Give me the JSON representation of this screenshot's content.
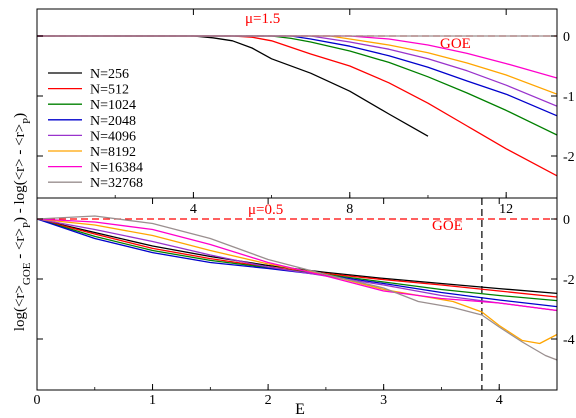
{
  "figure": {
    "ylabel_pre": "log(<r>",
    "ylabel_sub1": "GOE",
    "ylabel_mid": " - <r>",
    "ylabel_sub2": "P",
    "ylabel_post": ") - log(<r> - <r>",
    "ylabel_sub3": "P",
    "ylabel_end": ")",
    "xlabel": "E"
  },
  "chart_data": [
    {
      "type": "line",
      "panel": "top",
      "annotation": "μ=1.5",
      "annotation_color": "#ff0000",
      "reference_label": "GOE",
      "reference_y": 0,
      "reference_color": "#ff0000",
      "xlim": [
        0,
        13.3
      ],
      "ylim": [
        -2.7,
        0.45
      ],
      "x_ticks": [
        4,
        8,
        12
      ],
      "x_tick_labels": [
        "4",
        "8",
        "12"
      ],
      "x_tick_position": "top of bottom frame",
      "y_ticks": [
        0,
        -1,
        -2
      ],
      "y_tick_labels": [
        "0",
        "-1",
        "-2"
      ],
      "y_axis_side": "right",
      "legend_position": "left, below the reference line",
      "series": [
        {
          "name": "N=256",
          "color": "#000000",
          "x": [
            0,
            3,
            4,
            4.5,
            5,
            5.5,
            6,
            7,
            8,
            9,
            10
          ],
          "y": [
            0,
            0,
            0,
            -0.03,
            -0.08,
            -0.2,
            -0.38,
            -0.62,
            -0.92,
            -1.3,
            -1.67
          ]
        },
        {
          "name": "N=512",
          "color": "#ff0000",
          "x": [
            0,
            4,
            5,
            5.5,
            6,
            7,
            8,
            9,
            10,
            11,
            12,
            13.3
          ],
          "y": [
            0,
            0,
            0,
            -0.02,
            -0.08,
            -0.3,
            -0.5,
            -0.78,
            -1.12,
            -1.5,
            -1.88,
            -2.33
          ]
        },
        {
          "name": "N=1024",
          "color": "#008000",
          "x": [
            0,
            5,
            6,
            6.5,
            7,
            8,
            9,
            10,
            11,
            12,
            13.3
          ],
          "y": [
            0,
            0,
            0,
            -0.04,
            -0.1,
            -0.25,
            -0.44,
            -0.68,
            -0.95,
            -1.24,
            -1.65
          ]
        },
        {
          "name": "N=2048",
          "color": "#0000cc",
          "x": [
            0,
            5.5,
            6.5,
            7,
            8,
            9,
            10,
            11,
            12,
            13.3
          ],
          "y": [
            0,
            0,
            0,
            -0.05,
            -0.17,
            -0.33,
            -0.52,
            -0.75,
            -0.97,
            -1.33
          ]
        },
        {
          "name": "N=4096",
          "color": "#9933cc",
          "x": [
            0,
            6,
            7,
            8,
            9,
            10,
            11,
            12,
            13.3
          ],
          "y": [
            0,
            0,
            0,
            -0.1,
            -0.22,
            -0.38,
            -0.58,
            -0.82,
            -1.17
          ]
        },
        {
          "name": "N=8192",
          "color": "#ffa500",
          "x": [
            0,
            6.5,
            7.5,
            8,
            9,
            10,
            11,
            12,
            13.3
          ],
          "y": [
            0,
            0,
            0,
            -0.05,
            -0.15,
            -0.28,
            -0.45,
            -0.65,
            -0.97
          ]
        },
        {
          "name": "N=16384",
          "color": "#ff00cc",
          "x": [
            0,
            7,
            8,
            9,
            10,
            11,
            12,
            13.3
          ],
          "y": [
            0,
            0,
            0,
            -0.05,
            -0.15,
            -0.29,
            -0.46,
            -0.7
          ]
        },
        {
          "name": "N=32768",
          "color": "#9a8f8f",
          "x": [
            0,
            13.3
          ],
          "y": [
            0,
            0
          ]
        }
      ]
    },
    {
      "type": "line",
      "panel": "bottom",
      "annotation": "μ=0.5",
      "annotation_color": "#ff0000",
      "reference_label": "GOE",
      "reference_y": 0,
      "reference_color": "#ff0000",
      "vertical_marker_x": 3.85,
      "xlim": [
        0,
        4.5
      ],
      "ylim": [
        -5.7,
        0.7
      ],
      "x_ticks": [
        0,
        1,
        2,
        3,
        4
      ],
      "x_tick_labels": [
        "0",
        "1",
        "2",
        "3",
        "4"
      ],
      "y_ticks": [
        0,
        -2,
        -4
      ],
      "y_tick_labels": [
        "0",
        "-2",
        "-4"
      ],
      "y_axis_side": "right",
      "series": [
        {
          "name": "N=256",
          "color": "#000000",
          "x": [
            0,
            0.5,
            1,
            1.5,
            2,
            2.5,
            3,
            3.5,
            4,
            4.5
          ],
          "y": [
            0,
            -0.45,
            -0.9,
            -1.25,
            -1.55,
            -1.78,
            -1.98,
            -2.15,
            -2.32,
            -2.48
          ]
        },
        {
          "name": "N=512",
          "color": "#ff0000",
          "x": [
            0,
            0.5,
            1,
            1.5,
            2,
            2.5,
            3,
            3.5,
            4,
            4.5
          ],
          "y": [
            0,
            -0.5,
            -0.98,
            -1.32,
            -1.6,
            -1.82,
            -2.02,
            -2.2,
            -2.4,
            -2.6
          ]
        },
        {
          "name": "N=1024",
          "color": "#008000",
          "x": [
            0,
            0.5,
            1,
            1.5,
            2,
            2.5,
            3,
            3.5,
            4,
            4.5
          ],
          "y": [
            0,
            -0.58,
            -1.05,
            -1.38,
            -1.62,
            -1.85,
            -2.1,
            -2.35,
            -2.55,
            -2.72
          ]
        },
        {
          "name": "N=2048",
          "color": "#0000cc",
          "x": [
            0,
            0.5,
            1,
            1.5,
            2,
            2.5,
            3,
            3.5,
            4,
            4.5
          ],
          "y": [
            0,
            -0.65,
            -1.12,
            -1.45,
            -1.65,
            -1.88,
            -2.15,
            -2.45,
            -2.7,
            -2.92
          ]
        },
        {
          "name": "N=4096",
          "color": "#9933cc",
          "x": [
            0,
            0.5,
            1,
            1.5,
            2,
            2.5,
            3,
            3.5,
            4,
            4.5
          ],
          "y": [
            0,
            -0.35,
            -0.75,
            -1.2,
            -1.6,
            -1.9,
            -2.2,
            -2.55,
            -2.8,
            -3.05
          ]
        },
        {
          "name": "N=8192",
          "color": "#ffa500",
          "x": [
            0,
            0.5,
            1,
            1.5,
            2,
            2.5,
            3,
            3.3,
            3.6,
            3.85,
            4,
            4.2,
            4.35,
            4.5
          ],
          "y": [
            0,
            -0.2,
            -0.55,
            -1.05,
            -1.5,
            -1.85,
            -2.35,
            -2.55,
            -2.75,
            -3.1,
            -3.55,
            -4.05,
            -4.15,
            -3.85
          ]
        },
        {
          "name": "N=16384",
          "color": "#ff00cc",
          "x": [
            0,
            0.5,
            1,
            1.5,
            2,
            2.5,
            3,
            3.5,
            4,
            4.5
          ],
          "y": [
            0,
            -0.1,
            -0.35,
            -0.85,
            -1.45,
            -1.9,
            -2.4,
            -2.65,
            -2.8,
            -3.05
          ]
        },
        {
          "name": "N=32768",
          "color": "#9a8f8f",
          "x": [
            0,
            0.5,
            1,
            1.5,
            2,
            2.5,
            3,
            3.3,
            3.6,
            3.85,
            4,
            4.2,
            4.4,
            4.5
          ],
          "y": [
            0,
            0.1,
            -0.15,
            -0.65,
            -1.35,
            -1.85,
            -2.3,
            -2.75,
            -2.95,
            -3.2,
            -3.6,
            -4.1,
            -4.55,
            -4.7
          ]
        }
      ]
    }
  ]
}
